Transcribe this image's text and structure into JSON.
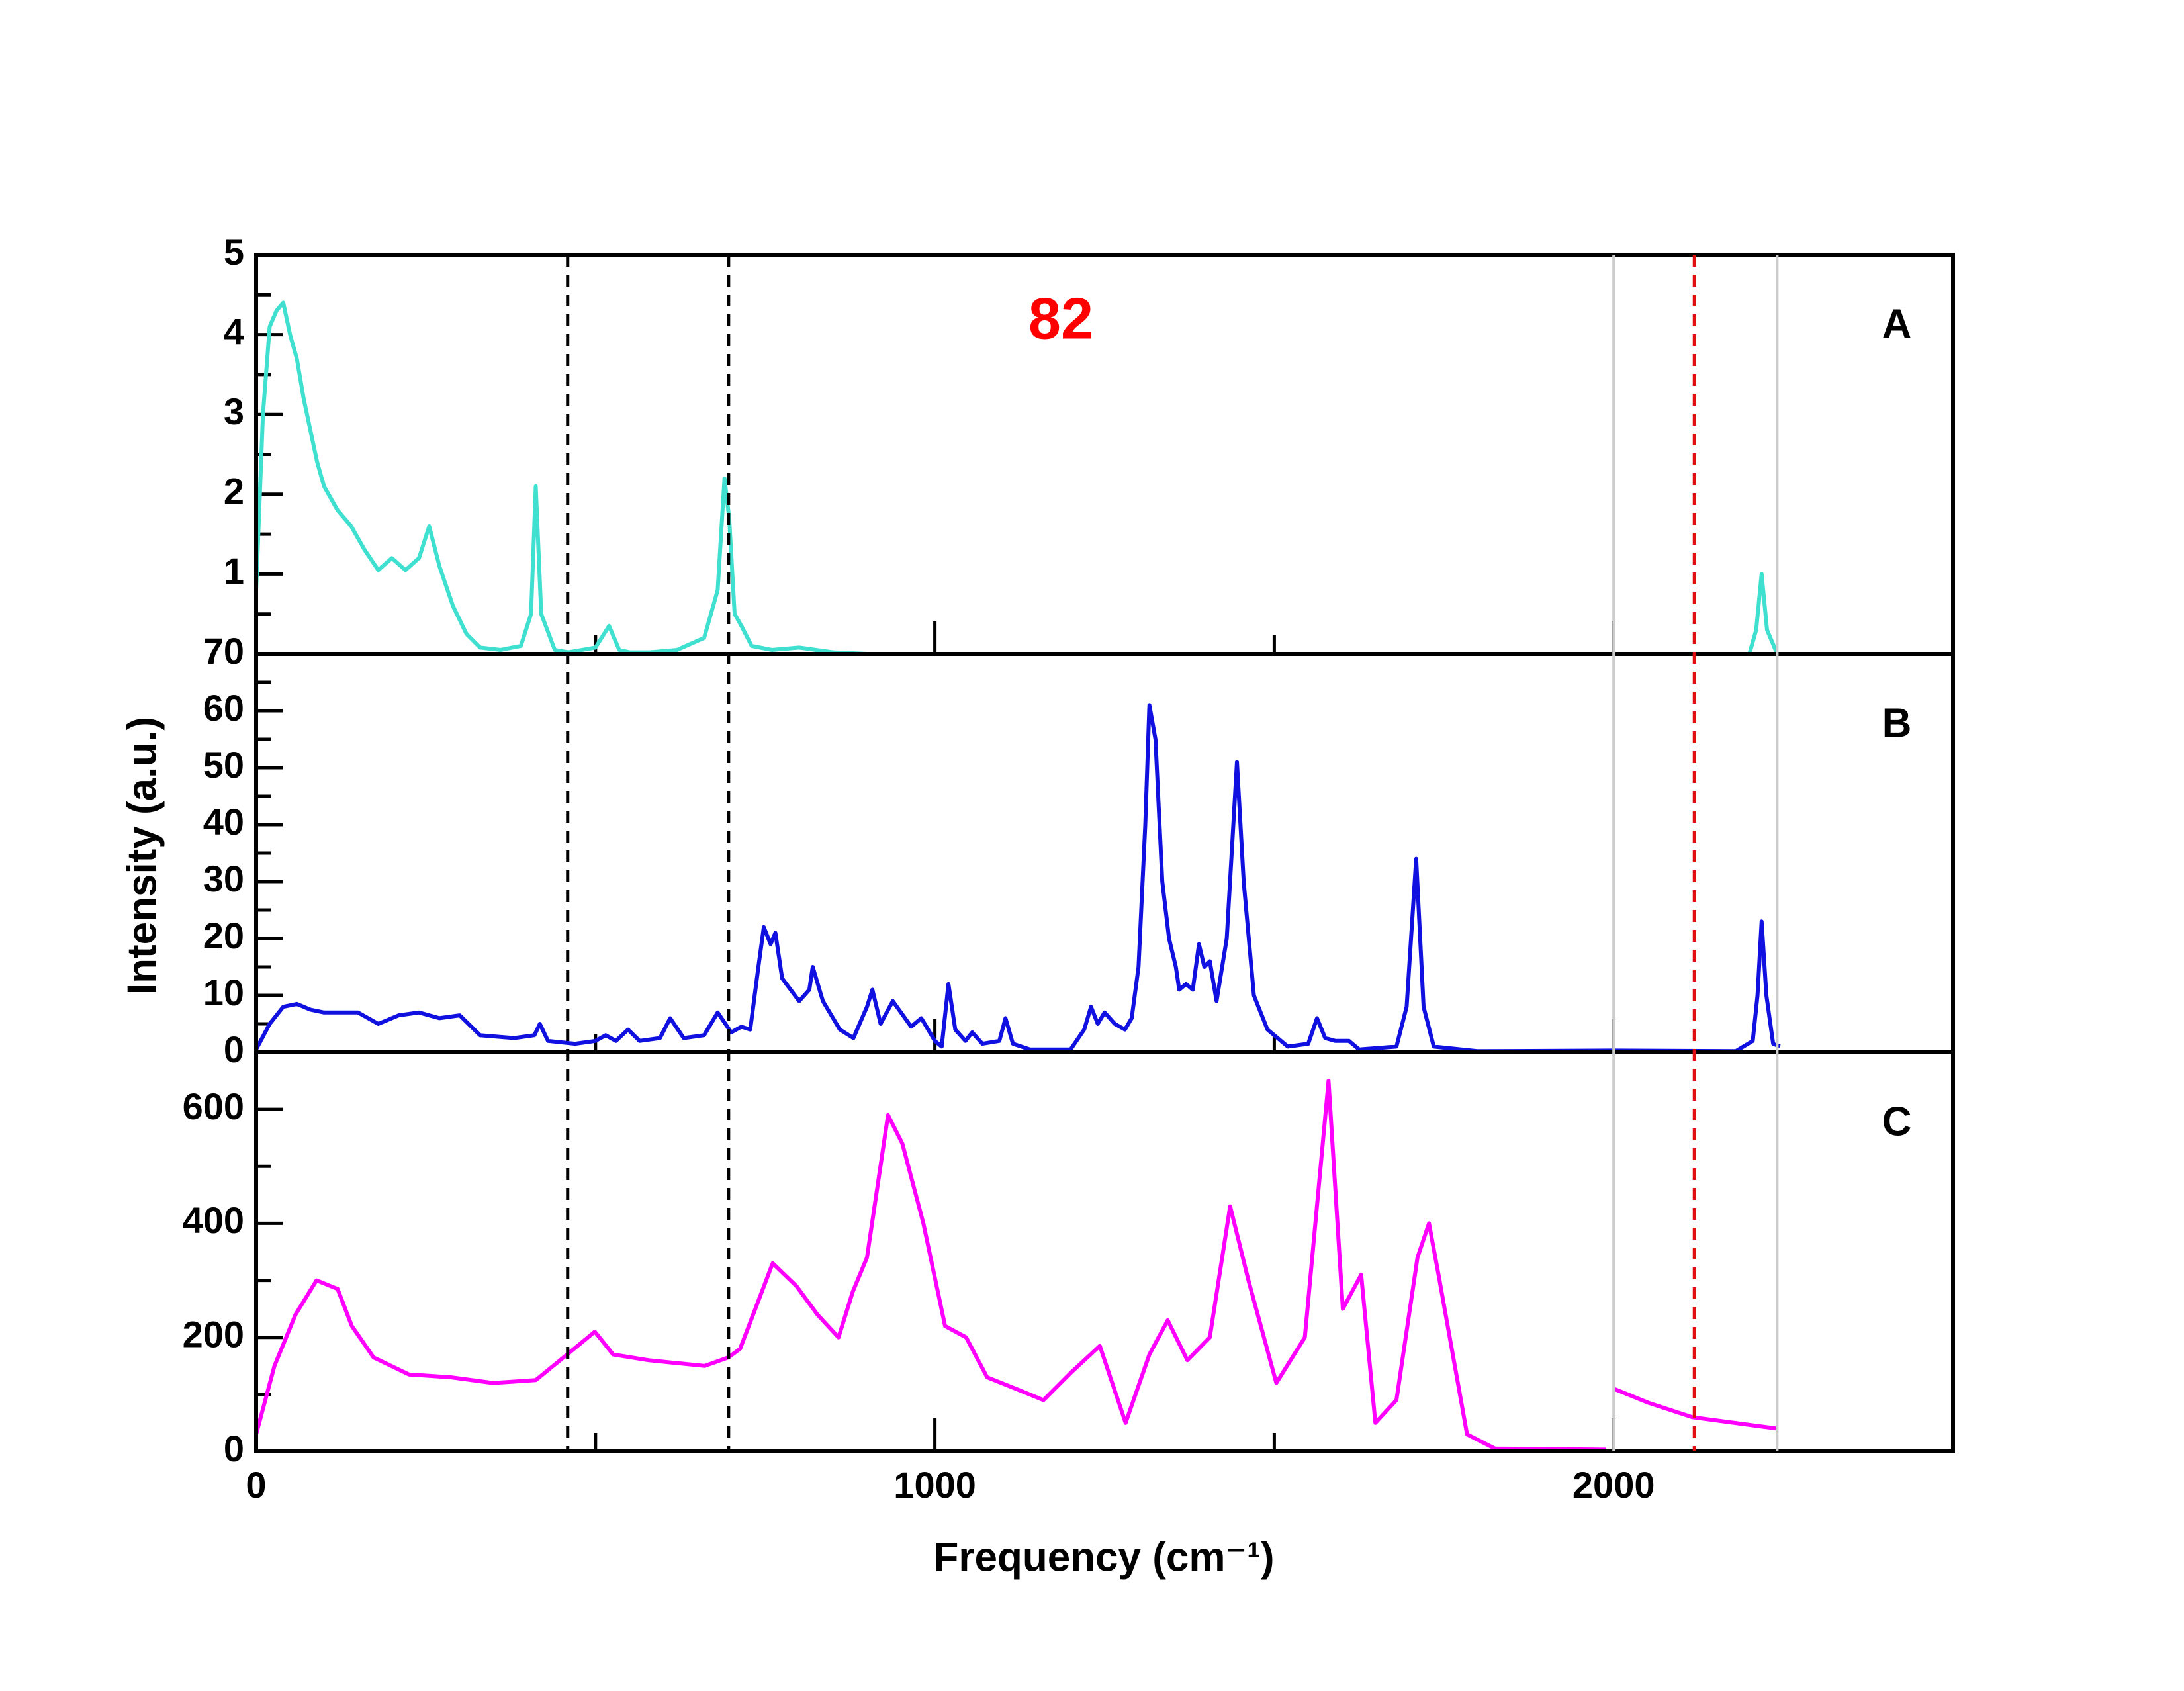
{
  "chart_data": [
    {
      "type": "line",
      "label": "A",
      "annotation": "82",
      "color": "#40e0d0",
      "x": [
        0,
        10,
        20,
        30,
        40,
        50,
        60,
        70,
        80,
        90,
        100,
        120,
        140,
        160,
        180,
        200,
        220,
        240,
        255,
        270,
        290,
        310,
        330,
        360,
        390,
        405,
        412,
        420,
        440,
        460,
        500,
        520,
        535,
        550,
        580,
        620,
        660,
        680,
        690,
        697,
        705,
        715,
        730,
        760,
        800,
        850,
        900,
        1500,
        2200,
        2210,
        2218,
        2226,
        2240
      ],
      "values": [
        0.8,
        3.0,
        4.1,
        4.3,
        4.4,
        4.0,
        3.7,
        3.2,
        2.8,
        2.4,
        2.1,
        1.8,
        1.6,
        1.3,
        1.05,
        1.2,
        1.05,
        1.2,
        1.6,
        1.1,
        0.6,
        0.25,
        0.08,
        0.05,
        0.1,
        0.5,
        2.1,
        0.5,
        0.05,
        0.02,
        0.08,
        0.35,
        0.05,
        0.02,
        0.02,
        0.05,
        0.2,
        0.8,
        2.2,
        1.7,
        0.5,
        0.35,
        0.1,
        0.05,
        0.08,
        0.02,
        0,
        0,
        0,
        0.3,
        1.0,
        0.3,
        0.02
      ],
      "xlim": [
        0,
        2500
      ],
      "xticks": [
        0,
        1000,
        2000
      ],
      "xminorticks": [
        500,
        1500
      ],
      "show_xtick_labels": false,
      "ylim": [
        0,
        5
      ],
      "yticks": [
        1,
        2,
        3,
        4,
        5
      ],
      "yminorticks": [
        0.5,
        1.5,
        2.5,
        3.5,
        4.5
      ],
      "vlines": [
        {
          "value": 459,
          "color": "#000000",
          "dashed": true
        },
        {
          "value": 696,
          "color": "#000000",
          "dashed": true
        },
        {
          "value": 2000,
          "color": "#cccccc",
          "dashed": false
        },
        {
          "value": 2119,
          "color": "#e01010",
          "dashed": true
        },
        {
          "value": 2241,
          "color": "#cccccc",
          "dashed": false
        }
      ]
    },
    {
      "type": "line",
      "label": "B",
      "ylabel": "Intensity (a.u.)",
      "color": "#1010e0",
      "x": [
        0,
        20,
        40,
        60,
        80,
        100,
        150,
        180,
        210,
        240,
        270,
        300,
        330,
        380,
        410,
        418,
        430,
        470,
        500,
        515,
        530,
        548,
        565,
        595,
        610,
        630,
        660,
        680,
        700,
        715,
        728,
        740,
        748,
        758,
        765,
        775,
        800,
        815,
        820,
        835,
        860,
        880,
        900,
        908,
        920,
        938,
        950,
        965,
        980,
        1000,
        1010,
        1020,
        1030,
        1045,
        1055,
        1070,
        1095,
        1104,
        1115,
        1140,
        1200,
        1220,
        1230,
        1240,
        1250,
        1265,
        1280,
        1290,
        1300,
        1310,
        1316,
        1325,
        1335,
        1345,
        1355,
        1360,
        1370,
        1380,
        1389,
        1397,
        1405,
        1415,
        1430,
        1445,
        1455,
        1470,
        1490,
        1520,
        1550,
        1563,
        1575,
        1590,
        1610,
        1625,
        1680,
        1695,
        1709,
        1720,
        1735,
        1800,
        2000,
        2180,
        2205,
        2212,
        2218,
        2225,
        2235,
        2245
      ],
      "values": [
        0.5,
        5,
        8,
        8.5,
        7.5,
        7,
        7,
        5,
        6.5,
        7,
        6,
        6.5,
        3,
        2.5,
        3,
        5,
        2,
        1.5,
        2,
        3,
        2,
        4,
        2,
        2.5,
        6,
        2.5,
        3,
        7,
        3.5,
        4.5,
        4,
        15,
        22,
        19,
        21,
        13,
        9,
        11,
        15,
        9,
        4,
        2.5,
        8,
        11,
        5,
        9,
        7,
        4.5,
        6,
        2,
        1,
        12,
        4,
        2,
        3.5,
        1.5,
        2,
        6,
        1.5,
        0.5,
        0.5,
        4,
        8,
        5,
        7,
        5,
        4,
        6,
        15,
        40,
        61,
        55,
        30,
        20,
        15,
        11,
        12,
        11,
        19,
        15,
        16,
        9,
        20,
        51,
        30,
        10,
        4,
        1,
        1.5,
        6,
        2.5,
        2,
        2,
        0.5,
        1,
        8,
        34,
        8,
        1,
        0.2,
        0.3,
        0.2,
        2,
        10,
        23,
        10,
        1.5,
        1
      ],
      "xlim": [
        0,
        2500
      ],
      "xticks": [
        0,
        1000,
        2000
      ],
      "xminorticks": [
        500,
        1500
      ],
      "show_xtick_labels": false,
      "ylim": [
        0,
        70
      ],
      "yticks": [
        0,
        10,
        20,
        30,
        40,
        50,
        60,
        70
      ],
      "yminorticks": [
        5,
        15,
        25,
        35,
        45,
        55,
        65
      ]
    },
    {
      "type": "line",
      "label": "C",
      "xlabel": "Frequency (cm⁻¹)",
      "color": "#ff00ff",
      "x": [
        0,
        27,
        58,
        89,
        120,
        141,
        173,
        225,
        287,
        349,
        412,
        453,
        499,
        526,
        578,
        661,
        696,
        713,
        761,
        796,
        827,
        858,
        879,
        900,
        931,
        952,
        983,
        1015,
        1046,
        1077,
        1119,
        1160,
        1202,
        1243,
        1281,
        1316,
        1343,
        1372,
        1405,
        1435,
        1462,
        1503,
        1545,
        1580,
        1601,
        1628,
        1649,
        1680,
        1711,
        1728,
        1742,
        1784,
        1825,
        1989,
        1995,
        2000,
        2052,
        2116,
        2241
      ],
      "values": [
        30,
        150,
        240,
        300,
        285,
        220,
        165,
        135,
        130,
        120,
        125,
        165,
        210,
        170,
        160,
        150,
        165,
        180,
        330,
        290,
        240,
        200,
        280,
        340,
        590,
        540,
        400,
        220,
        200,
        130,
        110,
        90,
        140,
        185,
        50,
        170,
        230,
        160,
        200,
        430,
        300,
        120,
        200,
        650,
        250,
        310,
        50,
        90,
        340,
        400,
        310,
        30,
        5,
        3,
        null,
        110,
        85,
        60,
        40
      ],
      "xlim": [
        0,
        2500
      ],
      "xticks": [
        0,
        1000,
        2000
      ],
      "xminorticks": [
        500,
        1500
      ],
      "show_xtick_labels": true,
      "ylim": [
        0,
        700
      ],
      "yticks": [
        0,
        200,
        400,
        600
      ],
      "yminorticks": [
        100,
        300,
        500
      ]
    }
  ]
}
